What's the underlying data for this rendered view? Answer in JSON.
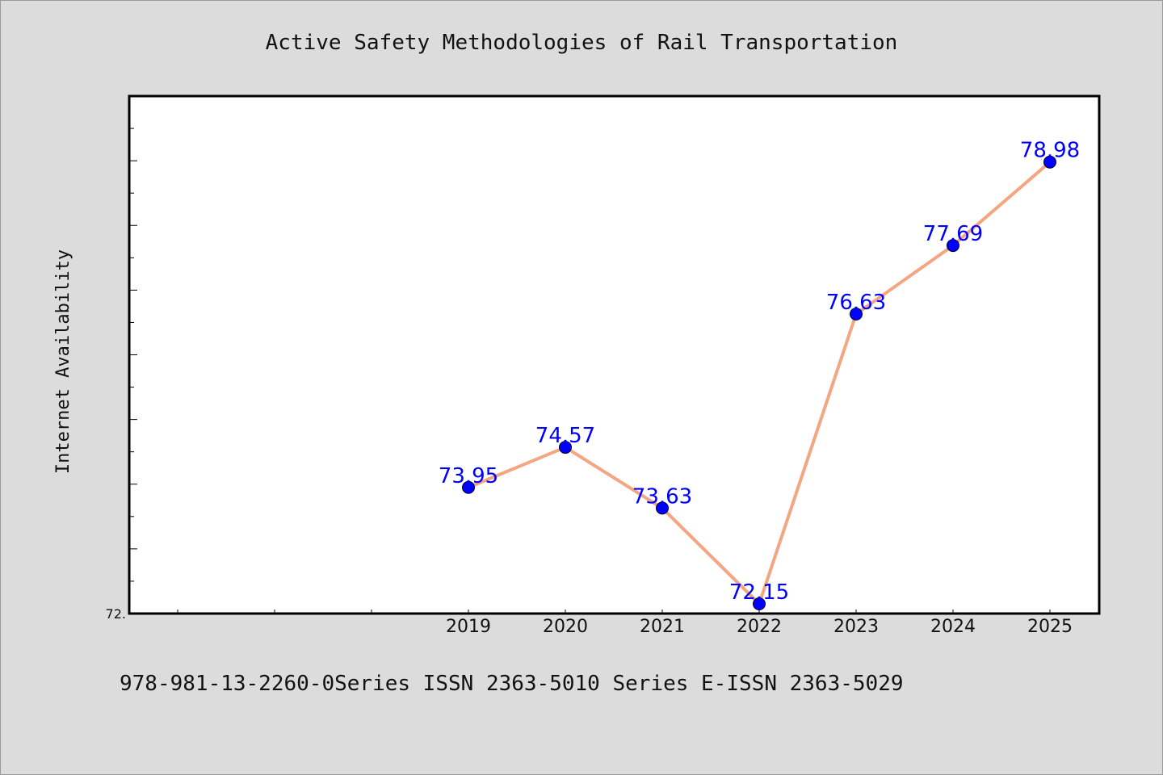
{
  "chart_data": {
    "type": "line",
    "title": "Active Safety Methodologies of Rail Transportation",
    "xlabel": "",
    "ylabel": "Internet Availability",
    "categories": [
      "2019",
      "2020",
      "2021",
      "2022",
      "2023",
      "2024",
      "2025"
    ],
    "values": [
      73.95,
      74.57,
      73.63,
      72.15,
      76.63,
      77.69,
      78.98
    ],
    "data_labels": [
      "73.95",
      "74.57",
      "73.63",
      "72.15",
      "76.63",
      "77.69",
      "78.98"
    ],
    "ylim": [
      72.0,
      80.0
    ],
    "y_tick_labels": [
      "72."
    ],
    "line_color": "#f4a582",
    "marker_color": "#0000ff",
    "label_color": "#0000ff",
    "grid": false,
    "legend": "none"
  },
  "footnote": "978-981-13-2260-0Series ISSN 2363-5010 Series E-ISSN 2363-5029"
}
